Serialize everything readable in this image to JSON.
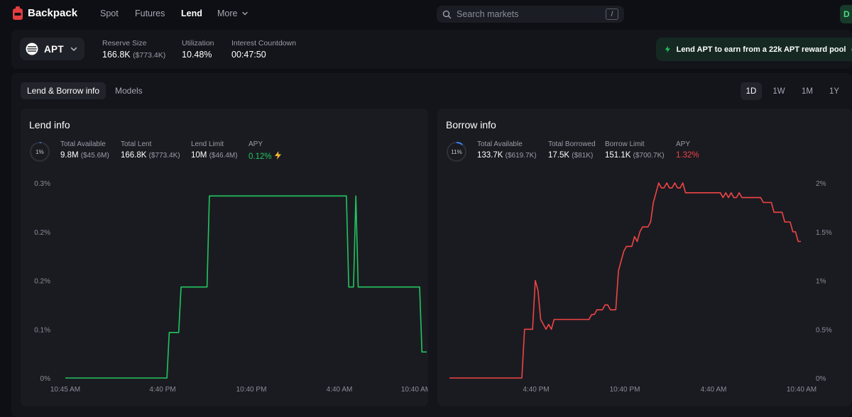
{
  "nav": {
    "brand": "Backpack",
    "links": [
      "Spot",
      "Futures",
      "Lend",
      "More"
    ],
    "active": "Lend",
    "search_placeholder": "Search markets",
    "search_shortcut": "/",
    "account_initial": "D"
  },
  "market": {
    "asset": "APT",
    "stats": [
      {
        "label": "Reserve Size",
        "value": "166.8K",
        "sub": "($773.4K)"
      },
      {
        "label": "Utilization",
        "value": "10.48%",
        "sub": ""
      },
      {
        "label": "Interest Countdown",
        "value": "00:47:50",
        "sub": ""
      }
    ],
    "promo": "Lend APT to earn from a 22k APT reward pool"
  },
  "tabs": [
    "Lend & Borrow info",
    "Models"
  ],
  "active_tab": "Lend & Borrow info",
  "ranges": [
    "1D",
    "1W",
    "1M",
    "1Y"
  ],
  "active_range": "1D",
  "lend": {
    "title": "Lend info",
    "ring_label": "1%",
    "ring_fraction": 0.01,
    "stats": [
      {
        "label": "Total Available",
        "value": "9.8M",
        "sub": "($45.6M)"
      },
      {
        "label": "Total Lent",
        "value": "166.8K",
        "sub": "($773.4K)"
      },
      {
        "label": "Lend Limit",
        "value": "10M",
        "sub": "($46.4M)"
      }
    ],
    "apy_label": "APY",
    "apy": "0.12%",
    "color": "#22c55e"
  },
  "borrow": {
    "title": "Borrow info",
    "ring_label": "11%",
    "ring_fraction": 0.11,
    "stats": [
      {
        "label": "Total Available",
        "value": "133.7K",
        "sub": "($619.7K)"
      },
      {
        "label": "Total Borrowed",
        "value": "17.5K",
        "sub": "($81K)"
      },
      {
        "label": "Borrow Limit",
        "value": "151.1K",
        "sub": "($700.7K)"
      }
    ],
    "apy_label": "APY",
    "apy": "1.32%",
    "color": "#ef4444"
  },
  "chart_data": [
    {
      "type": "line",
      "series": [
        {
          "values": [
            0,
            0,
            0,
            0,
            0,
            0,
            0,
            0,
            0,
            0,
            0,
            0,
            0,
            0,
            0,
            0,
            0,
            0,
            0,
            0,
            0,
            0,
            0,
            0,
            0,
            0,
            0,
            0,
            0,
            0,
            0,
            0,
            0,
            0,
            0,
            0,
            0,
            0,
            0,
            0,
            0,
            0,
            0,
            0,
            0.07,
            0.07,
            0.07,
            0.07,
            0.07,
            0.14,
            0.14,
            0.14,
            0.14,
            0.14,
            0.14,
            0.14,
            0.14,
            0.14,
            0.14,
            0.14,
            0.14,
            0.28,
            0.28,
            0.28,
            0.28,
            0.28,
            0.28,
            0.28,
            0.28,
            0.28,
            0.28,
            0.28,
            0.28,
            0.28,
            0.28,
            0.28,
            0.28,
            0.28,
            0.28,
            0.28,
            0.28,
            0.28,
            0.28,
            0.28,
            0.28,
            0.28,
            0.28,
            0.28,
            0.28,
            0.28,
            0.28,
            0.28,
            0.28,
            0.28,
            0.28,
            0.28,
            0.28,
            0.28,
            0.28,
            0.28,
            0.28,
            0.28,
            0.28,
            0.28,
            0.28,
            0.28,
            0.28,
            0.28,
            0.28,
            0.28,
            0.28,
            0.28,
            0.28,
            0.28,
            0.28,
            0.28,
            0.28,
            0.28,
            0.28,
            0.28,
            0.14,
            0.14,
            0.14,
            0.28,
            0.14,
            0.14,
            0.14,
            0.14,
            0.14,
            0.14,
            0.14,
            0.14,
            0.14,
            0.14,
            0.14,
            0.14,
            0.14,
            0.14,
            0.14,
            0.14,
            0.14,
            0.14,
            0.14,
            0.14,
            0.14,
            0.14,
            0.14,
            0.14,
            0.14,
            0.14,
            0.14,
            0.04,
            0.04,
            0.04
          ]
        }
      ],
      "y_ticks": [
        "0%",
        "0.1%",
        "0.2%",
        "0.2%",
        "0.3%"
      ],
      "x_ticks": [
        "10:45 AM",
        "4:40 PM",
        "10:40 PM",
        "4:40 AM",
        "10:40 AM"
      ],
      "ylim": [
        0,
        0.3
      ]
    },
    {
      "type": "line",
      "series": [
        {
          "values": [
            0,
            0,
            0,
            0,
            0,
            0,
            0,
            0,
            0,
            0,
            0,
            0,
            0,
            0,
            0,
            0,
            0,
            0,
            0,
            0,
            0,
            0,
            0,
            0,
            0,
            0,
            0,
            0,
            0.5,
            0.5,
            0.5,
            0.5,
            1,
            0.9,
            0.6,
            0.55,
            0.5,
            0.55,
            0.5,
            0.6,
            0.6,
            0.6,
            0.6,
            0.6,
            0.6,
            0.6,
            0.6,
            0.6,
            0.6,
            0.6,
            0.6,
            0.6,
            0.6,
            0.65,
            0.65,
            0.7,
            0.7,
            0.7,
            0.75,
            0.75,
            0.7,
            0.7,
            0.7,
            1.1,
            1.2,
            1.3,
            1.35,
            1.35,
            1.35,
            1.45,
            1.4,
            1.5,
            1.55,
            1.55,
            1.55,
            1.6,
            1.8,
            1.9,
            2,
            1.95,
            1.95,
            2,
            1.95,
            1.95,
            2,
            1.95,
            1.95,
            2,
            1.9,
            1.9,
            1.9,
            1.9,
            1.9,
            1.9,
            1.9,
            1.9,
            1.9,
            1.9,
            1.9,
            1.9,
            1.9,
            1.9,
            1.85,
            1.9,
            1.85,
            1.9,
            1.85,
            1.85,
            1.9,
            1.85,
            1.85,
            1.85,
            1.85,
            1.85,
            1.85,
            1.85,
            1.85,
            1.8,
            1.8,
            1.8,
            1.8,
            1.7,
            1.7,
            1.7,
            1.7,
            1.6,
            1.6,
            1.6,
            1.5,
            1.5,
            1.4,
            1.4
          ]
        }
      ],
      "y_ticks": [
        "0%",
        "0.5%",
        "1%",
        "1.5%",
        "2%"
      ],
      "x_ticks": [
        "4:40 PM",
        "10:40 PM",
        "4:40 AM",
        "10:40 AM"
      ],
      "ylim": [
        0,
        2
      ]
    }
  ]
}
